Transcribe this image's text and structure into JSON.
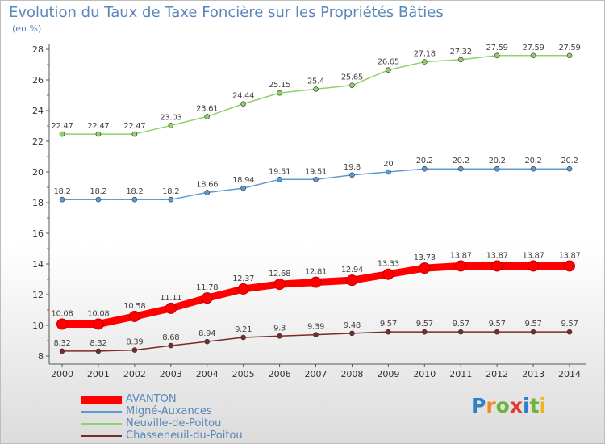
{
  "title": "Evolution du Taux de Taxe Foncière sur les Propriétés Bâties",
  "unit_label": "(en %)",
  "logo": {
    "text": "Proxiti",
    "colors": [
      "#2f7fc9",
      "#f08a1c",
      "#6db33f",
      "#e23b2e",
      "#2f7fc9",
      "#6db33f",
      "#f0b41c"
    ]
  },
  "chart_data": {
    "type": "line",
    "x": [
      "2000",
      "2001",
      "2002",
      "2003",
      "2004",
      "2005",
      "2006",
      "2007",
      "2008",
      "2009",
      "2010",
      "2011",
      "2012",
      "2013",
      "2014"
    ],
    "ylim": [
      8,
      28
    ],
    "yticks": [
      8,
      10,
      12,
      14,
      16,
      18,
      20,
      22,
      24,
      26,
      28
    ],
    "grid": false,
    "legend_position": "bottom-left",
    "series": [
      {
        "name": "AVANTON",
        "color": "#ff0000",
        "values": [
          10.08,
          10.08,
          10.58,
          11.11,
          11.78,
          12.37,
          12.68,
          12.81,
          12.94,
          13.33,
          13.73,
          13.87,
          13.87,
          13.87,
          13.87
        ],
        "labels": [
          "10.08",
          "10.08",
          "10.58",
          "11.11",
          "11.78",
          "12.37",
          "12.68",
          "12.81",
          "12.94",
          "13.33",
          "13.73",
          "13.87",
          "13.87",
          "13.87",
          "13.87"
        ]
      },
      {
        "name": "Migné-Auxances",
        "color": "#5b9bd5",
        "values": [
          18.2,
          18.2,
          18.2,
          18.2,
          18.66,
          18.94,
          19.51,
          19.51,
          19.8,
          20,
          20.2,
          20.2,
          20.2,
          20.2,
          20.2
        ],
        "labels": [
          "18.2",
          "18.2",
          "18.2",
          "18.2",
          "18.66",
          "18.94",
          "19.51",
          "19.51",
          "19.8",
          "20",
          "20.2",
          "20.2",
          "20.2",
          "20.2",
          "20.2"
        ]
      },
      {
        "name": "Neuville-de-Poitou",
        "color": "#8fd16a",
        "values": [
          22.47,
          22.47,
          22.47,
          23.03,
          23.61,
          24.44,
          25.15,
          25.4,
          25.65,
          26.65,
          27.18,
          27.32,
          27.59,
          27.59,
          27.59
        ],
        "labels": [
          "22.47",
          "22.47",
          "22.47",
          "23.03",
          "23.61",
          "24.44",
          "25.15",
          "25.4",
          "25.65",
          "26.65",
          "27.18",
          "27.32",
          "27.59",
          "27.59",
          "27.59"
        ]
      },
      {
        "name": "Chasseneuil-du-Poitou",
        "color": "#7b2a2a",
        "values": [
          8.32,
          8.32,
          8.39,
          8.68,
          8.94,
          9.21,
          9.3,
          9.39,
          9.48,
          9.57,
          9.57,
          9.57,
          9.57,
          9.57,
          9.57
        ],
        "labels": [
          "8.32",
          "8.32",
          "8.39",
          "8.68",
          "8.94",
          "9.21",
          "9.3",
          "9.39",
          "9.48",
          "9.57",
          "9.57",
          "9.57",
          "9.57",
          "9.57",
          "9.57"
        ]
      }
    ]
  }
}
